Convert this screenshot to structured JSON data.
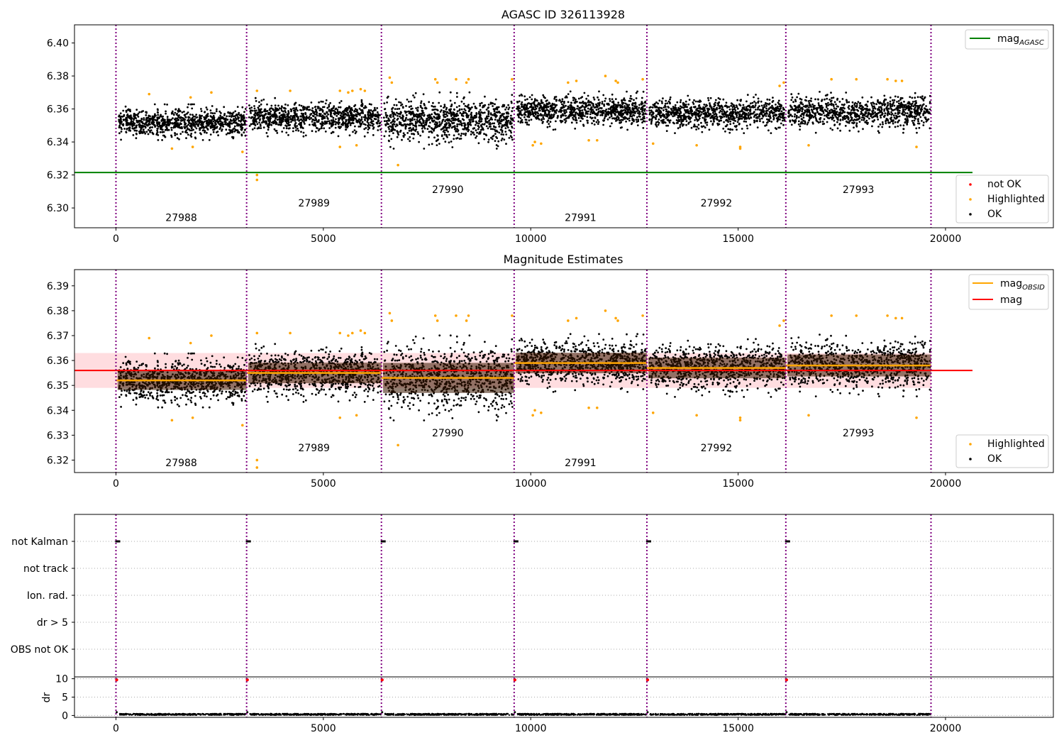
{
  "chart_data": [
    {
      "type": "scatter",
      "title": "AGASC ID 326113928",
      "xlim": [
        -1000,
        22600
      ],
      "ylim": [
        6.288,
        6.411
      ],
      "x_ticks": [
        0,
        5000,
        10000,
        15000,
        20000
      ],
      "x_tick_labels": [
        "0",
        "5000",
        "10000",
        "15000",
        "20000"
      ],
      "y_ticks": [
        6.3,
        6.32,
        6.34,
        6.36,
        6.38,
        6.4
      ],
      "y_tick_labels": [
        "6.30",
        "6.32",
        "6.34",
        "6.36",
        "6.38",
        "6.40"
      ],
      "obsid_boundaries": [
        0,
        3150,
        6400,
        9600,
        12800,
        16150,
        19650
      ],
      "obsid_labels": [
        {
          "text": "27988",
          "x": 1575,
          "y": 6.292
        },
        {
          "text": "27989",
          "x": 4775,
          "y": 6.301
        },
        {
          "text": "27990",
          "x": 8000,
          "y": 6.309
        },
        {
          "text": "27991",
          "x": 11200,
          "y": 6.292
        },
        {
          "text": "27992",
          "x": 14475,
          "y": 6.301
        },
        {
          "text": "27993",
          "x": 17900,
          "y": 6.309
        }
      ],
      "segment_mean_mag": [
        6.352,
        6.355,
        6.353,
        6.359,
        6.357,
        6.358
      ],
      "segment_spread_mag": [
        0.007,
        0.0075,
        0.011,
        0.0075,
        0.0075,
        0.008
      ],
      "mag_agasc": 6.3215,
      "mag_agasc_xrange": [
        -1000,
        20650
      ],
      "highlighted_points": [
        [
          800,
          6.369
        ],
        [
          1350,
          6.336
        ],
        [
          1800,
          6.367
        ],
        [
          1850,
          6.337
        ],
        [
          2300,
          6.37
        ],
        [
          3050,
          6.334
        ],
        [
          3400,
          6.371
        ],
        [
          3400,
          6.32
        ],
        [
          3400,
          6.317
        ],
        [
          4200,
          6.371
        ],
        [
          5400,
          6.337
        ],
        [
          5400,
          6.371
        ],
        [
          5600,
          6.37
        ],
        [
          5700,
          6.371
        ],
        [
          5800,
          6.338
        ],
        [
          5900,
          6.372
        ],
        [
          6000,
          6.371
        ],
        [
          6600,
          6.379
        ],
        [
          6650,
          6.376
        ],
        [
          6800,
          6.326
        ],
        [
          7700,
          6.378
        ],
        [
          7750,
          6.376
        ],
        [
          8200,
          6.378
        ],
        [
          8450,
          6.376
        ],
        [
          8500,
          6.378
        ],
        [
          9550,
          6.378
        ],
        [
          10050,
          6.338
        ],
        [
          10100,
          6.34
        ],
        [
          10250,
          6.339
        ],
        [
          10900,
          6.376
        ],
        [
          11100,
          6.377
        ],
        [
          11400,
          6.341
        ],
        [
          11600,
          6.341
        ],
        [
          11800,
          6.38
        ],
        [
          12050,
          6.377
        ],
        [
          12100,
          6.376
        ],
        [
          12700,
          6.378
        ],
        [
          12950,
          6.339
        ],
        [
          14000,
          6.338
        ],
        [
          15050,
          6.336
        ],
        [
          15050,
          6.337
        ],
        [
          16000,
          6.374
        ],
        [
          16100,
          6.376
        ],
        [
          16700,
          6.338
        ],
        [
          17250,
          6.378
        ],
        [
          17850,
          6.378
        ],
        [
          18600,
          6.378
        ],
        [
          18800,
          6.377
        ],
        [
          18950,
          6.377
        ],
        [
          19300,
          6.337
        ]
      ],
      "legend": [
        "mag_AGASC",
        "not OK",
        "Highlighted",
        "OK"
      ],
      "legend_location_upper": "top-right",
      "legend_location_lower": "bottom-right",
      "series_colors": {
        "ok": "#000000",
        "highlighted": "#ffa500",
        "not_ok": "#ff0000",
        "mag_agasc": "#008000",
        "obsid_line": "#800080"
      }
    },
    {
      "type": "scatter",
      "title": "Magnitude Estimates",
      "xlim": [
        -1000,
        22600
      ],
      "ylim": [
        6.315,
        6.3965
      ],
      "x_ticks": [
        0,
        5000,
        10000,
        15000,
        20000
      ],
      "x_tick_labels": [
        "0",
        "5000",
        "10000",
        "15000",
        "20000"
      ],
      "y_ticks": [
        6.32,
        6.33,
        6.34,
        6.35,
        6.36,
        6.37,
        6.38,
        6.39
      ],
      "y_tick_labels": [
        "6.32",
        "6.33",
        "6.34",
        "6.35",
        "6.36",
        "6.37",
        "6.38",
        "6.39"
      ],
      "obsid_labels": [
        {
          "text": "27988",
          "x": 1575,
          "y": 6.3175
        },
        {
          "text": "27989",
          "x": 4775,
          "y": 6.3235
        },
        {
          "text": "27990",
          "x": 8000,
          "y": 6.3295
        },
        {
          "text": "27991",
          "x": 11200,
          "y": 6.3175
        },
        {
          "text": "27992",
          "x": 14475,
          "y": 6.3235
        },
        {
          "text": "27993",
          "x": 17900,
          "y": 6.3295
        }
      ],
      "mag": 6.356,
      "mag_band": [
        6.349,
        6.363
      ],
      "mag_xrange": [
        -1000,
        20650
      ],
      "mag_obsid": [
        6.352,
        6.355,
        6.353,
        6.359,
        6.357,
        6.358
      ],
      "legend": [
        "mag_OBSID",
        "mag",
        "Highlighted",
        "OK"
      ],
      "series_colors": {
        "mag": "#ff0000",
        "mag_band": "#ffdde0",
        "mag_obsid": "#ffa500",
        "ok": "#000000",
        "highlighted": "#ffa500"
      }
    },
    {
      "type": "scatter",
      "xlim": [
        -1000,
        22600
      ],
      "flag_rows": [
        "not Kalman",
        "not track",
        "Ion. rad.",
        "dr > 5",
        "OBS not OK"
      ],
      "not_kalman_x": [
        0,
        3150,
        6400,
        9600,
        12800,
        16150
      ],
      "dr_ylim": [
        -0.5,
        10.5
      ],
      "dr_ticks": [
        0,
        5,
        10
      ],
      "dr_tick_labels": [
        "0",
        "5",
        "10"
      ],
      "dr_ylabel": "dr",
      "dr_spikes": [
        {
          "x": 0,
          "y": 9.7
        },
        {
          "x": 3150,
          "y": 9.7
        },
        {
          "x": 6400,
          "y": 9.7
        },
        {
          "x": 9600,
          "y": 9.7
        },
        {
          "x": 12800,
          "y": 9.7
        },
        {
          "x": 16150,
          "y": 9.7
        }
      ],
      "dr_typical": 0.3,
      "x_ticks": [
        0,
        5000,
        10000,
        15000,
        20000
      ],
      "x_tick_labels": [
        "0",
        "5000",
        "10000",
        "15000",
        "20000"
      ]
    }
  ],
  "legends": {
    "top_upper": {
      "mag_agasc_main": "mag",
      "mag_agasc_sub": "AGASC"
    },
    "top_lower": {
      "not_ok": "not OK",
      "highlighted": "Highlighted",
      "ok": "OK"
    },
    "mid_upper": {
      "mag_obsid_main": "mag",
      "mag_obsid_sub": "OBSID",
      "mag": "mag"
    },
    "mid_lower": {
      "highlighted": "Highlighted",
      "ok": "OK"
    }
  }
}
